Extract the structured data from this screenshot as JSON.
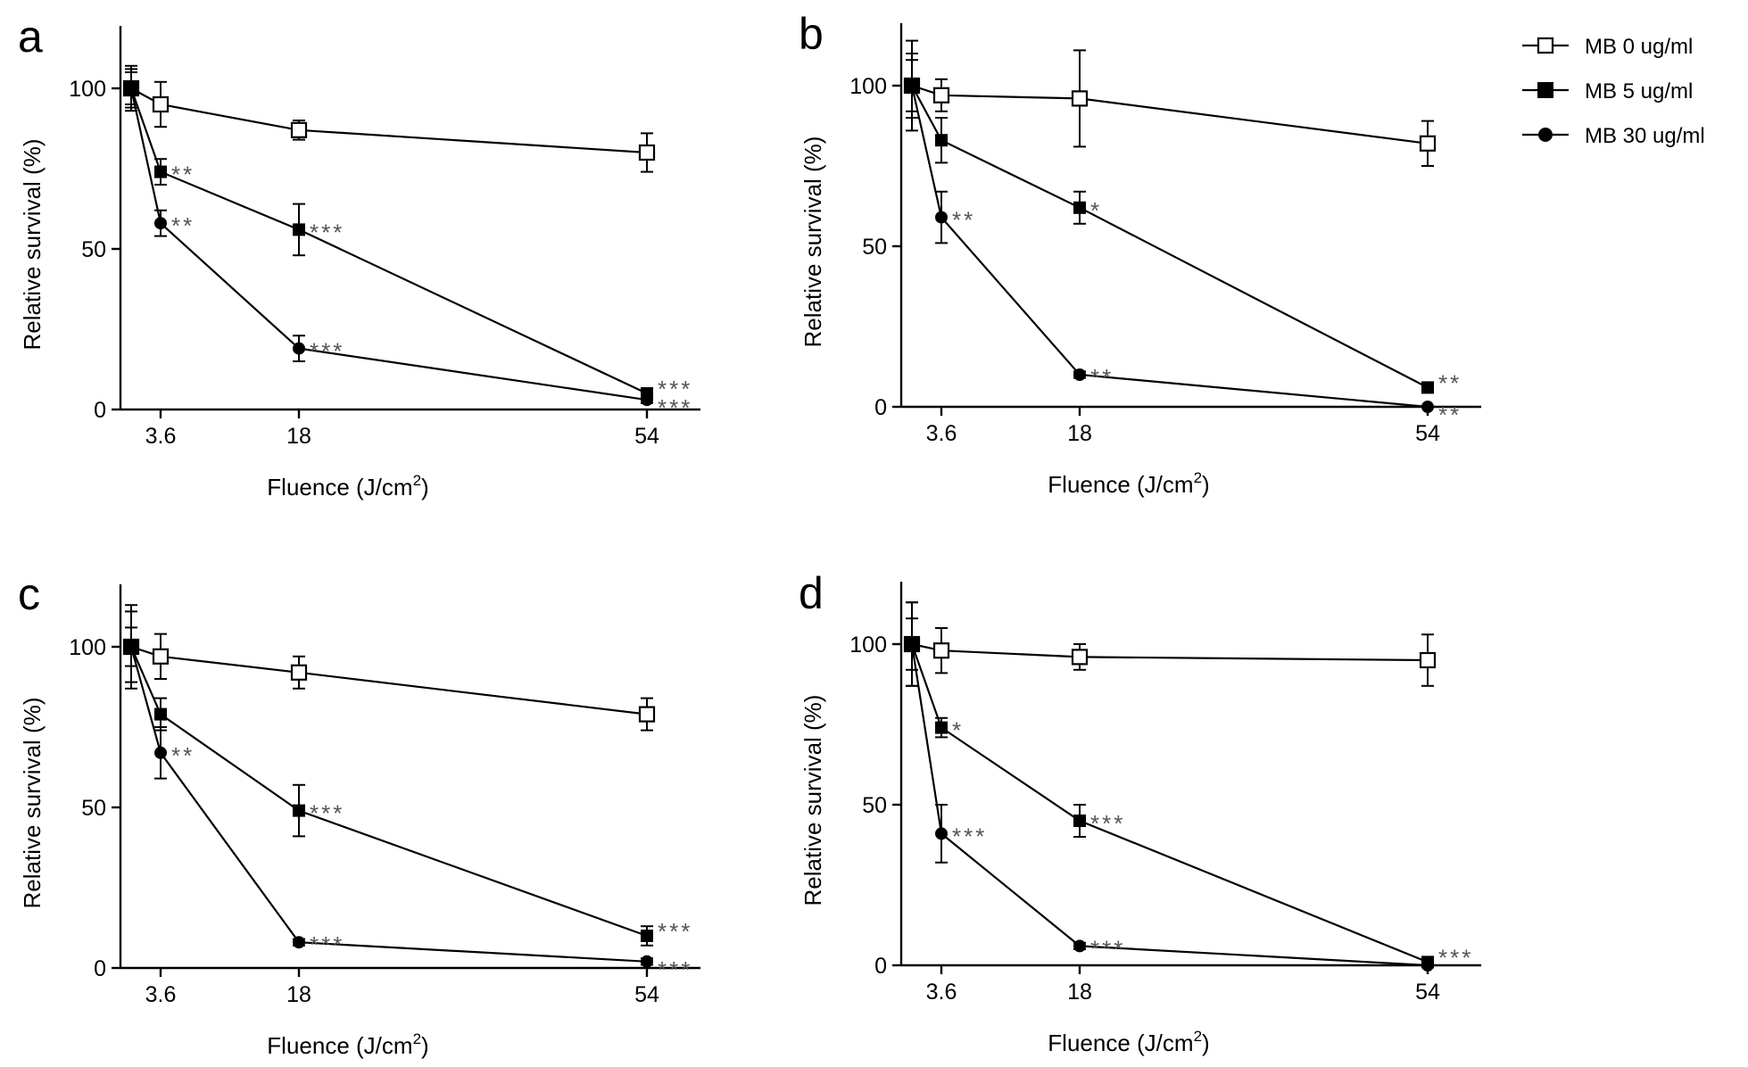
{
  "legend": {
    "entries": [
      {
        "label": "MB 0 ug/ml",
        "marker": "open-square"
      },
      {
        "label": "MB 5 ug/ml",
        "marker": "filled-square"
      },
      {
        "label": "MB 30 ug/ml",
        "marker": "filled-circle"
      }
    ],
    "placement": "top-right"
  },
  "chart_data": [
    {
      "type": "line",
      "panel": "a",
      "xlabel": "Fluence (J/cm",
      "xlabel_sup": "2",
      "xlabel_end": ")",
      "ylabel": "Relative survival (%)",
      "x_ticks": [
        3.6,
        18,
        54
      ],
      "x_tick_labels": [
        "3.6",
        "18",
        "54"
      ],
      "y_ticks": [
        0,
        50,
        100
      ],
      "y_tick_labels": [
        "0",
        "50",
        "100"
      ],
      "ylim": [
        0,
        120
      ],
      "grid": false,
      "series": [
        {
          "name": "MB 0 ug/ml",
          "marker": "open-square",
          "points": [
            {
              "x": 0,
              "y": 100,
              "err": 5
            },
            {
              "x": 3.6,
              "y": 95,
              "err": 7
            },
            {
              "x": 18,
              "y": 87,
              "err": 3
            },
            {
              "x": 54,
              "y": 80,
              "err": 6
            }
          ],
          "sig": [
            "",
            "",
            "",
            ""
          ]
        },
        {
          "name": "MB 5 ug/ml",
          "marker": "filled-square",
          "points": [
            {
              "x": 0,
              "y": 100,
              "err": 7
            },
            {
              "x": 3.6,
              "y": 74,
              "err": 4
            },
            {
              "x": 18,
              "y": 56,
              "err": 8
            },
            {
              "x": 54,
              "y": 5,
              "err": 1
            }
          ],
          "sig": [
            "",
            "**",
            "***",
            "***"
          ]
        },
        {
          "name": "MB 30 ug/ml",
          "marker": "filled-circle",
          "points": [
            {
              "x": 0,
              "y": 100,
              "err": 6
            },
            {
              "x": 3.6,
              "y": 58,
              "err": 4
            },
            {
              "x": 18,
              "y": 19,
              "err": 4
            },
            {
              "x": 54,
              "y": 3,
              "err": 1
            }
          ],
          "sig": [
            "",
            "**",
            "***",
            "***"
          ]
        }
      ]
    },
    {
      "type": "line",
      "panel": "b",
      "xlabel": "Fluence (J/cm",
      "xlabel_sup": "2",
      "xlabel_end": ")",
      "ylabel": "Relative survival (%)",
      "x_ticks": [
        3.6,
        18,
        54
      ],
      "x_tick_labels": [
        "3.6",
        "18",
        "54"
      ],
      "y_ticks": [
        0,
        50,
        100
      ],
      "y_tick_labels": [
        "0",
        "50",
        "100"
      ],
      "ylim": [
        0,
        120
      ],
      "grid": false,
      "series": [
        {
          "name": "MB 0 ug/ml",
          "marker": "open-square",
          "points": [
            {
              "x": 0,
              "y": 100,
              "err": 14
            },
            {
              "x": 3.6,
              "y": 97,
              "err": 5
            },
            {
              "x": 18,
              "y": 96,
              "err": 15
            },
            {
              "x": 54,
              "y": 82,
              "err": 7
            }
          ],
          "sig": [
            "",
            "",
            "",
            ""
          ]
        },
        {
          "name": "MB 5 ug/ml",
          "marker": "filled-square",
          "points": [
            {
              "x": 0,
              "y": 100,
              "err": 10
            },
            {
              "x": 3.6,
              "y": 83,
              "err": 7
            },
            {
              "x": 18,
              "y": 62,
              "err": 5
            },
            {
              "x": 54,
              "y": 6,
              "err": 1
            }
          ],
          "sig": [
            "",
            "",
            "*",
            "**"
          ]
        },
        {
          "name": "MB 30 ug/ml",
          "marker": "filled-circle",
          "points": [
            {
              "x": 0,
              "y": 100,
              "err": 8
            },
            {
              "x": 3.6,
              "y": 59,
              "err": 8
            },
            {
              "x": 18,
              "y": 10,
              "err": 1
            },
            {
              "x": 54,
              "y": 0,
              "err": 0
            }
          ],
          "sig": [
            "",
            "**",
            "**",
            "**"
          ]
        }
      ]
    },
    {
      "type": "line",
      "panel": "c",
      "xlabel": "Fluence (J/cm",
      "xlabel_sup": "2",
      "xlabel_end": ")",
      "ylabel": "Relative survival (%)",
      "x_ticks": [
        3.6,
        18,
        54
      ],
      "x_tick_labels": [
        "3.6",
        "18",
        "54"
      ],
      "y_ticks": [
        0,
        50,
        100
      ],
      "y_tick_labels": [
        "0",
        "50",
        "100"
      ],
      "ylim": [
        0,
        120
      ],
      "grid": false,
      "series": [
        {
          "name": "MB 0 ug/ml",
          "marker": "open-square",
          "points": [
            {
              "x": 0,
              "y": 100,
              "err": 13
            },
            {
              "x": 3.6,
              "y": 97,
              "err": 7
            },
            {
              "x": 18,
              "y": 92,
              "err": 5
            },
            {
              "x": 54,
              "y": 79,
              "err": 5
            }
          ],
          "sig": [
            "",
            "",
            "",
            ""
          ]
        },
        {
          "name": "MB 5 ug/ml",
          "marker": "filled-square",
          "points": [
            {
              "x": 0,
              "y": 100,
              "err": 11
            },
            {
              "x": 3.6,
              "y": 79,
              "err": 5
            },
            {
              "x": 18,
              "y": 49,
              "err": 8
            },
            {
              "x": 54,
              "y": 10,
              "err": 3
            }
          ],
          "sig": [
            "",
            "",
            "***",
            "***"
          ]
        },
        {
          "name": "MB 30 ug/ml",
          "marker": "filled-circle",
          "points": [
            {
              "x": 0,
              "y": 100,
              "err": 6
            },
            {
              "x": 3.6,
              "y": 67,
              "err": 8
            },
            {
              "x": 18,
              "y": 8,
              "err": 1
            },
            {
              "x": 54,
              "y": 2,
              "err": 1
            }
          ],
          "sig": [
            "",
            "**",
            "***",
            "***"
          ]
        }
      ]
    },
    {
      "type": "line",
      "panel": "d",
      "xlabel": "Fluence (J/cm",
      "xlabel_sup": "2",
      "xlabel_end": ")",
      "ylabel": "Relative survival (%)",
      "x_ticks": [
        3.6,
        18,
        54
      ],
      "x_tick_labels": [
        "3.6",
        "18",
        "54"
      ],
      "y_ticks": [
        0,
        50,
        100
      ],
      "y_tick_labels": [
        "0",
        "50",
        "100"
      ],
      "ylim": [
        0,
        120
      ],
      "grid": false,
      "series": [
        {
          "name": "MB 0 ug/ml",
          "marker": "open-square",
          "points": [
            {
              "x": 0,
              "y": 100,
              "err": 13
            },
            {
              "x": 3.6,
              "y": 98,
              "err": 7
            },
            {
              "x": 18,
              "y": 96,
              "err": 4
            },
            {
              "x": 54,
              "y": 95,
              "err": 8
            }
          ],
          "sig": [
            "",
            "",
            "",
            ""
          ]
        },
        {
          "name": "MB 5 ug/ml",
          "marker": "filled-square",
          "points": [
            {
              "x": 0,
              "y": 100,
              "err": 13
            },
            {
              "x": 3.6,
              "y": 74,
              "err": 3
            },
            {
              "x": 18,
              "y": 45,
              "err": 5
            },
            {
              "x": 54,
              "y": 1,
              "err": 1
            }
          ],
          "sig": [
            "",
            "*",
            "***",
            "***"
          ]
        },
        {
          "name": "MB 30 ug/ml",
          "marker": "filled-circle",
          "points": [
            {
              "x": 0,
              "y": 100,
              "err": 8
            },
            {
              "x": 3.6,
              "y": 41,
              "err": 9
            },
            {
              "x": 18,
              "y": 6,
              "err": 1
            },
            {
              "x": 54,
              "y": 0,
              "err": 0
            }
          ],
          "sig": [
            "",
            "***",
            "***",
            ""
          ]
        }
      ]
    }
  ]
}
